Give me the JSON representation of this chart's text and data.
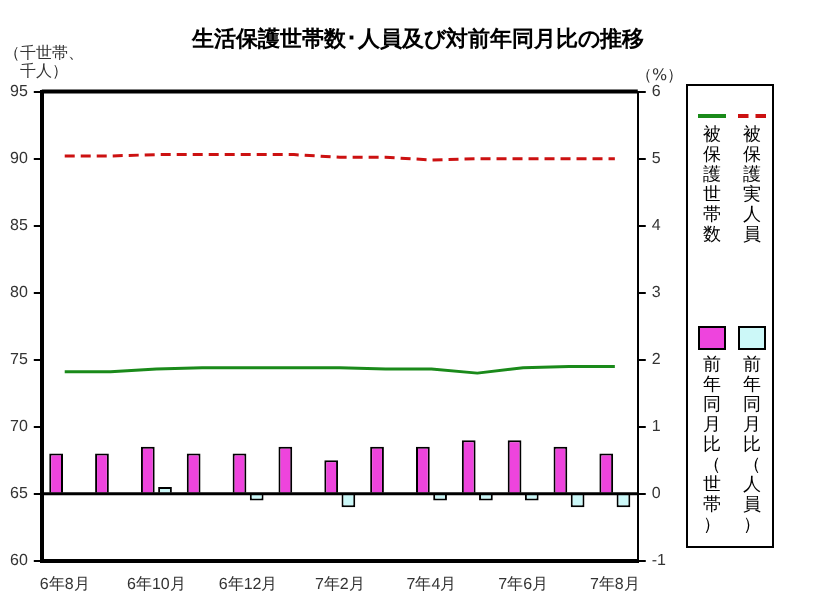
{
  "chart_data": {
    "type": "bar",
    "title": "生活保護世帯数･人員及び対前年同月比の推移",
    "ylabel": "（千世帯、千人）",
    "y2label": "（%）",
    "categories": [
      "6年8月",
      null,
      "6年10月",
      null,
      "6年12月",
      null,
      "7年2月",
      null,
      "7年4月",
      null,
      "7年6月",
      null,
      "7年8月"
    ],
    "series": [
      {
        "name": "被保護世帯数",
        "type": "line",
        "color": "#1a8a1a",
        "line_style": "solid",
        "values": [
          74.1,
          74.1,
          74.3,
          74.4,
          74.4,
          74.4,
          74.4,
          74.3,
          74.3,
          74.0,
          74.4,
          74.5,
          74.5
        ]
      },
      {
        "name": "被保護実人員",
        "type": "line",
        "color": "#cc1111",
        "line_style": "dashed",
        "values": [
          90.2,
          90.2,
          90.3,
          90.3,
          90.3,
          90.3,
          90.1,
          90.1,
          89.9,
          90.0,
          90.0,
          90.0,
          90.0
        ]
      },
      {
        "name": "前年同月比（世帯）",
        "axis": "y2",
        "color": "#ee44dd",
        "values": [
          0.6,
          0.6,
          0.7,
          0.6,
          0.6,
          0.7,
          0.5,
          0.7,
          0.7,
          0.8,
          0.8,
          0.7,
          0.6
        ]
      },
      {
        "name": "前年同月比（人員）",
        "axis": "y2",
        "color": "#ccf8f8",
        "values": [
          0.0,
          0.0,
          0.1,
          0.0,
          -0.1,
          0.0,
          -0.2,
          0.0,
          -0.1,
          -0.1,
          -0.1,
          -0.2,
          -0.2
        ]
      }
    ],
    "ylim": [
      60,
      95
    ],
    "yticks": [
      60,
      65,
      70,
      75,
      80,
      85,
      90,
      95
    ],
    "y2lim": [
      -1,
      6
    ],
    "y2ticks": [
      -1,
      0,
      1,
      2,
      3,
      4,
      5,
      6
    ],
    "ref_lines": [
      {
        "axis": "y2",
        "value": 0,
        "color": "#000000"
      }
    ],
    "grid": false,
    "legend": "right",
    "marker": "none"
  }
}
